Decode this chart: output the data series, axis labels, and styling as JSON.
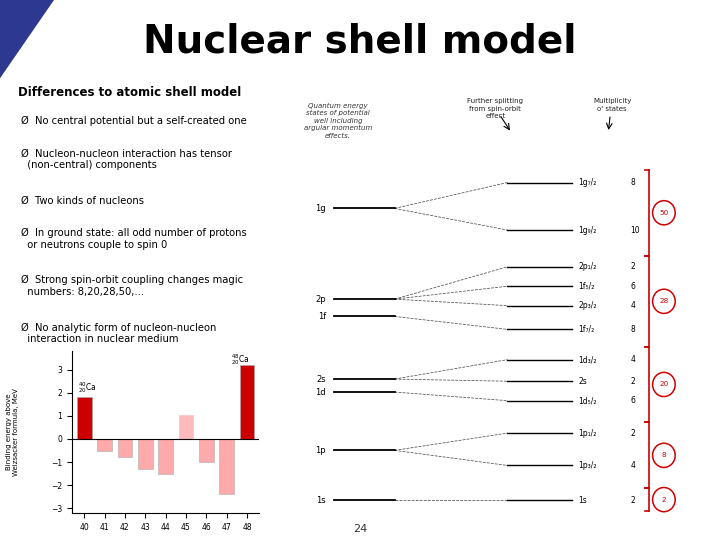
{
  "title": "Nuclear shell model",
  "title_fontsize": 28,
  "title_fontweight": "bold",
  "title_color": "#000000",
  "background_color": "#ffffff",
  "header_triangle_color": "#2d3990",
  "header_line_color": "#7ab648",
  "sidebar_color": "#2d3990",
  "left_text_heading": "Differences to atomic shell model",
  "left_bullets": [
    "No central potential but a self-created one",
    "Nucleon-nucleon interaction has tensor\n  (non-central) components",
    "Two kinds of nucleons",
    "In ground state: all odd number of protons\n  or neutrons couple to spin 0",
    "Strong spin-orbit coupling changes magic\n  numbers: 8,20,28,50,...",
    "No analytic form of nucleon-nucleon\n  interaction in nuclear medium"
  ],
  "page_number": "24",
  "bar_categories": [
    40,
    41,
    42,
    43,
    44,
    45,
    46,
    47,
    48
  ],
  "bar_values": [
    1.8,
    -0.5,
    -0.8,
    -1.3,
    -1.5,
    1.05,
    -1.0,
    -2.4,
    3.2
  ],
  "bar_ylim": [
    -3.2,
    3.8
  ],
  "bar_ylabel": "Binding energy above\nWeizsacker formula, MeV",
  "magic_color": "#cc0000",
  "col_header1": "Quantum energy\nstates of potential\nwell including\nargular momentum\neffects.",
  "col_header2": "Further splitting\nfrom spin-orbit\neffect",
  "col_header3": "Multiplicity\no' states",
  "left_levels": [
    [
      "1s",
      0.55
    ],
    [
      "1p",
      1.7
    ],
    [
      "1d",
      3.05
    ],
    [
      "2s",
      3.35
    ],
    [
      "1f",
      4.8
    ],
    [
      "2p",
      5.2
    ],
    [
      "1g",
      7.3
    ]
  ],
  "right_levels": [
    [
      "1s",
      0.55,
      2
    ],
    [
      "1p₃/₂",
      1.35,
      4
    ],
    [
      "1p₁/₂",
      2.1,
      2
    ],
    [
      "1d₅/₂",
      2.85,
      6
    ],
    [
      "2s",
      3.3,
      2
    ],
    [
      "1d₃/₂",
      3.8,
      4
    ],
    [
      "1f₇/₂",
      4.5,
      8
    ],
    [
      "2p₃/₂",
      5.05,
      4
    ],
    [
      "1f₅/₂",
      5.5,
      6
    ],
    [
      "2p₁/₂",
      5.95,
      2
    ],
    [
      "1g₉/₂",
      6.8,
      10
    ],
    [
      "1g₇/₂",
      7.9,
      8
    ]
  ],
  "bracket_data": [
    [
      0.3,
      0.82,
      2
    ],
    [
      0.82,
      2.35,
      8
    ],
    [
      2.35,
      4.1,
      20
    ],
    [
      4.1,
      6.2,
      28
    ],
    [
      6.2,
      8.2,
      50
    ]
  ]
}
